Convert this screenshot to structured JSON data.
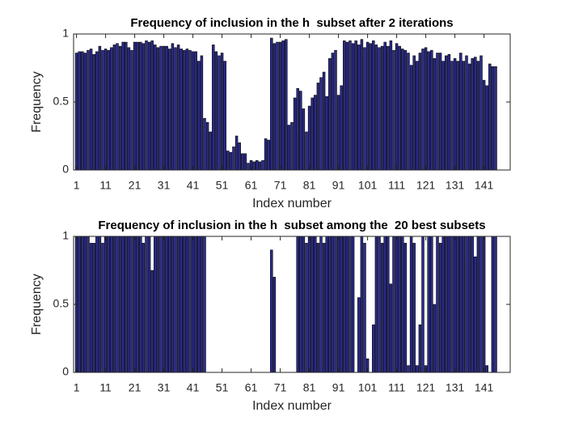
{
  "chart_data": [
    {
      "type": "bar",
      "title": "Frequency of inclusion in the h  subset after 2 iterations",
      "xlabel": "Index number",
      "ylabel": "Frequency",
      "x": [
        1,
        2,
        3,
        4,
        5,
        6,
        7,
        8,
        9,
        10,
        11,
        12,
        13,
        14,
        15,
        16,
        17,
        18,
        19,
        20,
        21,
        22,
        23,
        24,
        25,
        26,
        27,
        28,
        29,
        30,
        31,
        32,
        33,
        34,
        35,
        36,
        37,
        38,
        39,
        40,
        41,
        42,
        43,
        44,
        45,
        46,
        47,
        48,
        49,
        50,
        51,
        52,
        53,
        54,
        55,
        56,
        57,
        58,
        59,
        60,
        61,
        62,
        63,
        64,
        65,
        66,
        67,
        68,
        69,
        70,
        71,
        72,
        73,
        74,
        75,
        76,
        77,
        78,
        79,
        80,
        81,
        82,
        83,
        84,
        85,
        86,
        87,
        88,
        89,
        90,
        91,
        92,
        93,
        94,
        95,
        96,
        97,
        98,
        99,
        100,
        101,
        102,
        103,
        104,
        105,
        106,
        107,
        108,
        109,
        110,
        111,
        112,
        113,
        114,
        115,
        116,
        117,
        118,
        119,
        120,
        121,
        122,
        123,
        124,
        125,
        126,
        127,
        128,
        129,
        130,
        131,
        132,
        133,
        134,
        135,
        136,
        137,
        138,
        139,
        140,
        141,
        142,
        143,
        144,
        145
      ],
      "values": [
        0.86,
        0.87,
        0.87,
        0.86,
        0.88,
        0.89,
        0.85,
        0.87,
        0.91,
        0.88,
        0.89,
        0.88,
        0.9,
        0.92,
        0.93,
        0.91,
        0.94,
        0.94,
        0.9,
        0.88,
        0.94,
        0.94,
        0.94,
        0.93,
        0.95,
        0.94,
        0.95,
        0.92,
        0.9,
        0.91,
        0.91,
        0.91,
        0.89,
        0.93,
        0.9,
        0.92,
        0.89,
        0.88,
        0.89,
        0.88,
        0.87,
        0.87,
        0.8,
        0.84,
        0.38,
        0.35,
        0.28,
        0.92,
        0.87,
        0.84,
        0.86,
        0.8,
        0.14,
        0.13,
        0.17,
        0.25,
        0.2,
        0.12,
        0.12,
        0.05,
        0.07,
        0.06,
        0.07,
        0.06,
        0.07,
        0.23,
        0.22,
        0.97,
        0.93,
        0.94,
        0.94,
        0.95,
        0.96,
        0.33,
        0.35,
        0.53,
        0.6,
        0.58,
        0.45,
        0.28,
        0.47,
        0.53,
        0.55,
        0.64,
        0.68,
        0.72,
        0.54,
        0.82,
        0.86,
        0.88,
        0.55,
        0.62,
        0.95,
        0.94,
        0.95,
        0.93,
        0.95,
        0.92,
        0.96,
        0.9,
        0.94,
        0.93,
        0.95,
        0.92,
        0.9,
        0.91,
        0.94,
        0.91,
        0.95,
        0.88,
        0.93,
        0.91,
        0.89,
        0.88,
        0.86,
        0.77,
        0.84,
        0.8,
        0.86,
        0.89,
        0.9,
        0.87,
        0.88,
        0.82,
        0.86,
        0.86,
        0.8,
        0.84,
        0.85,
        0.8,
        0.82,
        0.8,
        0.86,
        0.8,
        0.84,
        0.78,
        0.82,
        0.83,
        0.8,
        0.84,
        0.66,
        0.62,
        0.78,
        0.76,
        0.76
      ],
      "color": "#2b2b8c",
      "xlim": [
        0,
        150
      ],
      "ylim": [
        0,
        1
      ],
      "xticks": [
        1,
        11,
        21,
        31,
        41,
        51,
        61,
        71,
        81,
        91,
        101,
        111,
        121,
        131,
        141
      ],
      "yticks": [
        0,
        0.5,
        1
      ]
    },
    {
      "type": "bar",
      "title": "Frequency of inclusion in the h  subset among the  20 best subsets",
      "xlabel": "Index number",
      "ylabel": "Frequency",
      "x": [
        1,
        2,
        3,
        4,
        5,
        6,
        7,
        8,
        9,
        10,
        11,
        12,
        13,
        14,
        15,
        16,
        17,
        18,
        19,
        20,
        21,
        22,
        23,
        24,
        25,
        26,
        27,
        28,
        29,
        30,
        31,
        32,
        33,
        34,
        35,
        36,
        37,
        38,
        39,
        40,
        41,
        42,
        43,
        44,
        45,
        46,
        47,
        48,
        49,
        50,
        51,
        52,
        53,
        54,
        55,
        56,
        57,
        58,
        59,
        60,
        61,
        62,
        63,
        64,
        65,
        66,
        67,
        68,
        69,
        70,
        71,
        72,
        73,
        74,
        75,
        76,
        77,
        78,
        79,
        80,
        81,
        82,
        83,
        84,
        85,
        86,
        87,
        88,
        89,
        90,
        91,
        92,
        93,
        94,
        95,
        96,
        97,
        98,
        99,
        100,
        101,
        102,
        103,
        104,
        105,
        106,
        107,
        108,
        109,
        110,
        111,
        112,
        113,
        114,
        115,
        116,
        117,
        118,
        119,
        120,
        121,
        122,
        123,
        124,
        125,
        126,
        127,
        128,
        129,
        130,
        131,
        132,
        133,
        134,
        135,
        136,
        137,
        138,
        139,
        140,
        141,
        142,
        143,
        144,
        145
      ],
      "values": [
        1,
        1,
        1,
        1,
        1,
        0.95,
        0.95,
        1,
        1,
        0.95,
        1,
        1,
        1,
        1,
        1,
        1,
        1,
        1,
        1,
        1,
        1,
        1,
        1,
        0.95,
        1,
        1,
        0.75,
        1,
        1,
        1,
        1,
        1,
        1,
        1,
        1,
        1,
        1,
        1,
        1,
        1,
        1,
        1,
        1,
        1,
        1,
        0,
        0,
        0,
        0,
        0,
        0,
        0,
        0,
        0,
        0,
        0,
        0,
        0,
        0,
        0,
        0,
        0,
        0,
        0,
        0,
        0,
        0,
        0.9,
        0.7,
        0,
        0,
        0,
        0,
        0,
        0,
        0,
        1,
        1,
        1,
        0.95,
        1,
        1,
        1,
        0.95,
        1,
        0.95,
        1,
        1,
        1,
        1,
        1,
        1,
        1,
        1,
        1,
        1,
        0,
        0.55,
        1,
        0.95,
        0.1,
        0,
        0.35,
        1,
        1,
        0.95,
        1,
        1,
        0.65,
        1,
        1,
        1,
        1,
        0.95,
        0.05,
        1,
        0.95,
        0.05,
        0.35,
        1,
        0.05,
        1,
        1,
        0.5,
        1,
        0.95,
        1,
        1,
        1,
        1,
        1,
        1,
        1,
        1,
        1,
        1,
        1,
        0.85,
        1,
        1,
        1,
        0.05,
        0,
        1,
        1
      ],
      "color": "#2b2b8c",
      "xlim": [
        0,
        150
      ],
      "ylim": [
        0,
        1
      ],
      "xticks": [
        1,
        11,
        21,
        31,
        41,
        51,
        61,
        71,
        81,
        91,
        101,
        111,
        121,
        131,
        141
      ],
      "yticks": [
        0,
        0.5,
        1
      ]
    }
  ]
}
